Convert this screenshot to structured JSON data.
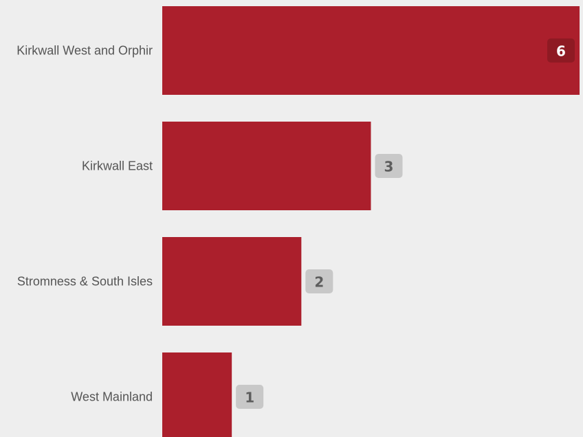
{
  "chart_data": {
    "type": "bar",
    "orientation": "horizontal",
    "categories": [
      "Kirkwall West and Orphir",
      "Kirkwall East",
      "Stromness & South Isles",
      "West Mainland"
    ],
    "values": [
      6,
      3,
      2,
      1
    ],
    "title": "",
    "xlabel": "",
    "ylabel": "",
    "xlim": [
      0,
      6
    ],
    "grid": false,
    "legend": "none"
  },
  "colors": {
    "bar": "#ab1f2c",
    "background": "#eeeeee",
    "value_badge_inside": "#8e1a23",
    "value_badge_outside": "#c8c8c8",
    "value_text_inside": "#ffffff",
    "value_text_outside": "#5d5d5d"
  }
}
